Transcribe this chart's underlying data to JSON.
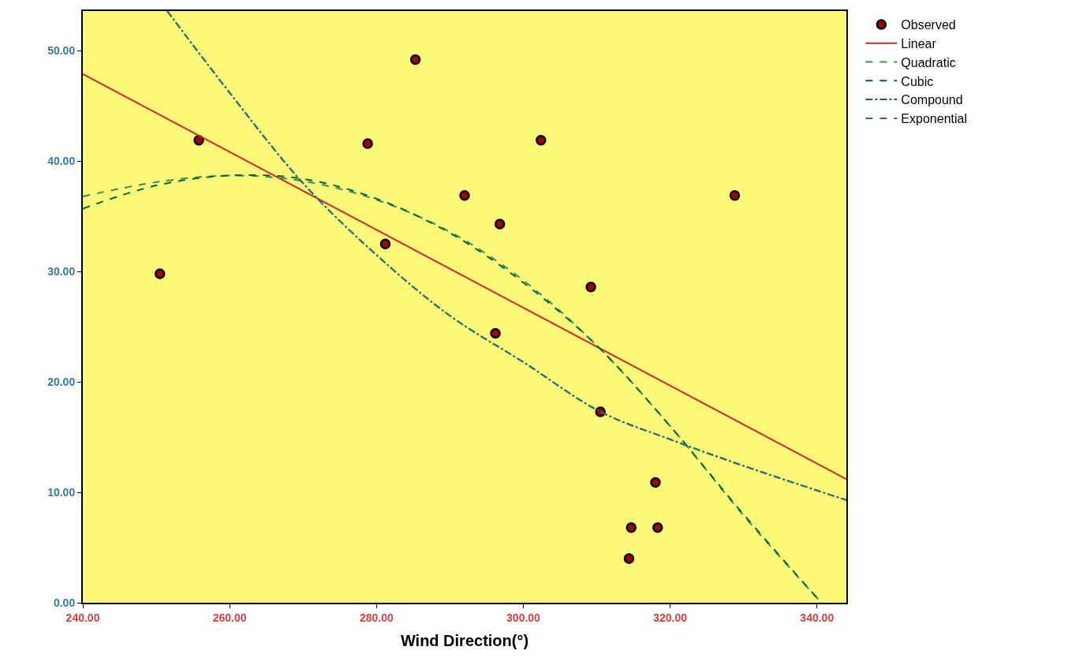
{
  "chart_data": {
    "type": "scatter",
    "xlabel": "Wind Direction(°)",
    "xlim": [
      240,
      344
    ],
    "ylim": [
      0,
      53.6
    ],
    "xticks": [
      {
        "value": 240,
        "label": "240.00"
      },
      {
        "value": 260,
        "label": "260.00"
      },
      {
        "value": 280,
        "label": "280.00"
      },
      {
        "value": 300,
        "label": "300.00"
      },
      {
        "value": 320,
        "label": "320.00"
      },
      {
        "value": 340,
        "label": "340.00"
      }
    ],
    "yticks": [
      {
        "value": 0,
        "label": "0.00"
      },
      {
        "value": 10,
        "label": "10.00"
      },
      {
        "value": 20,
        "label": "20.00"
      },
      {
        "value": 30,
        "label": "30.00"
      },
      {
        "value": 40,
        "label": "40.00"
      },
      {
        "value": 50,
        "label": "50.00"
      }
    ],
    "grid": false,
    "legend": "top right",
    "series": [
      {
        "name": "Observed",
        "marker": "circle",
        "color": "#a00000",
        "x": [
          250.5,
          255.8,
          278.8,
          281.2,
          285.3,
          292.0,
          296.8,
          296.2,
          302.4,
          309.2,
          310.5,
          318.0,
          314.7,
          318.3,
          314.4,
          328.8
        ],
        "values": [
          29.8,
          41.9,
          41.6,
          32.5,
          49.2,
          36.9,
          34.3,
          24.4,
          41.9,
          28.6,
          17.3,
          10.9,
          6.8,
          6.8,
          4.0,
          36.9
        ]
      },
      {
        "name": "Linear",
        "type": "line",
        "marker": "none",
        "line_style": "solid",
        "color": "#cc2a2a",
        "x": [
          240,
          344
        ],
        "values": [
          47.9,
          11.2
        ]
      },
      {
        "name": "Quadratic",
        "type": "line",
        "marker": "none",
        "line_style": "dashed",
        "color": "#3a8a5a",
        "x": [
          240,
          250,
          260,
          270,
          280,
          290,
          300,
          310,
          320,
          330,
          340.6
        ],
        "values": [
          36.8,
          38.1,
          38.7,
          38.2,
          36.5,
          33.6,
          29.2,
          23.3,
          16,
          7.9,
          0
        ]
      },
      {
        "name": "Cubic",
        "type": "line",
        "marker": "none",
        "line_style": "dashed",
        "color": "#006633",
        "x": [
          240,
          250,
          260,
          270,
          280,
          290,
          300,
          310,
          320,
          330,
          340.6
        ],
        "values": [
          35.7,
          37.8,
          38.7,
          38.4,
          36.6,
          33.5,
          29,
          23.3,
          16,
          8,
          0
        ]
      },
      {
        "name": "Compound",
        "type": "line",
        "marker": "none",
        "line_style": "dashdot",
        "color": "#1a5e70",
        "x": [
          251.5,
          260,
          270,
          280,
          290,
          300,
          310.5,
          320,
          330,
          344
        ],
        "values": [
          53.6,
          46.2,
          38,
          31.5,
          26,
          21.8,
          17.3,
          14.8,
          12.4,
          9.3
        ]
      },
      {
        "name": "Exponential",
        "type": "line",
        "marker": "none",
        "line_style": "dashed",
        "color": "#2a6e80",
        "x": [
          251.5,
          260,
          270,
          280,
          290,
          300,
          310.5,
          320,
          330,
          344
        ],
        "values": [
          53.6,
          46.2,
          38,
          31.5,
          26,
          21.8,
          17.3,
          14.8,
          12.4,
          9.3
        ]
      }
    ]
  }
}
